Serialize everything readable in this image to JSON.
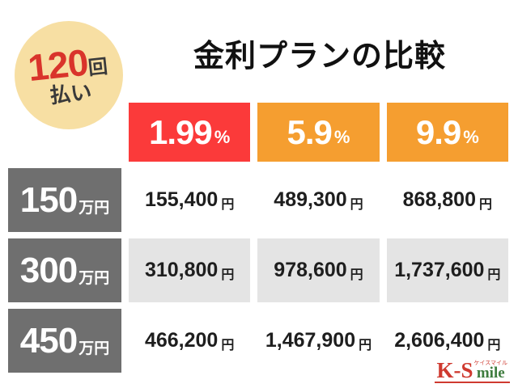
{
  "badge": {
    "count": "120",
    "count_unit": "回",
    "label": "払い"
  },
  "title": "金利プランの比較",
  "colors": {
    "header_red": "#fb3a3a",
    "header_orange": "#f59e30",
    "row_header_gray": "#6f6f6f",
    "cell_shaded_gray": "#e4e4e4",
    "badge_cream": "#f7dfa3",
    "badge_red": "#d9342b",
    "logo_red": "#cf3a30",
    "logo_green": "#3f7d3f"
  },
  "table": {
    "headers": [
      {
        "rate": "1.99",
        "unit": "%",
        "bg": "#fb3a3a"
      },
      {
        "rate": "5.9",
        "unit": "%",
        "bg": "#f59e30"
      },
      {
        "rate": "9.9",
        "unit": "%",
        "bg": "#f59e30"
      }
    ],
    "rows": [
      {
        "amount": "150",
        "amount_unit": "万円",
        "cells": [
          {
            "value": "155,400",
            "unit": "円"
          },
          {
            "value": "489,300",
            "unit": "円"
          },
          {
            "value": "868,800",
            "unit": "円"
          }
        ]
      },
      {
        "amount": "300",
        "amount_unit": "万円",
        "cells": [
          {
            "value": "310,800",
            "unit": "円"
          },
          {
            "value": "978,600",
            "unit": "円"
          },
          {
            "value": "1,737,600",
            "unit": "円"
          }
        ]
      },
      {
        "amount": "450",
        "amount_unit": "万円",
        "cells": [
          {
            "value": "466,200",
            "unit": "円"
          },
          {
            "value": "1,467,900",
            "unit": "円"
          },
          {
            "value": "2,606,400",
            "unit": "円"
          }
        ]
      }
    ]
  },
  "logo": {
    "part1": "K-S",
    "part2": "mile",
    "kana": "ケイスマイル"
  },
  "chart_data": {
    "type": "table",
    "title": "金利プランの比較",
    "payments": "120回払い",
    "columns": [
      "1.99%",
      "5.9%",
      "9.9%"
    ],
    "row_headers": [
      "150万円",
      "300万円",
      "450万円"
    ],
    "rows": [
      [
        "155,400円",
        "489,300円",
        "868,800円"
      ],
      [
        "310,800円",
        "978,600円",
        "1,737,600円"
      ],
      [
        "466,200円",
        "1,467,900円",
        "2,606,400円"
      ]
    ]
  }
}
